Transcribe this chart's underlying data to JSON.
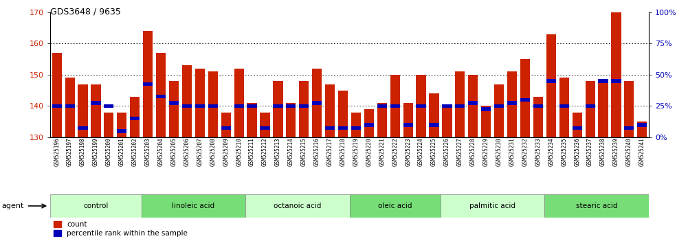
{
  "title": "GDS3648 / 9635",
  "categories": [
    "GSM525196",
    "GSM525197",
    "GSM525198",
    "GSM525199",
    "GSM525200",
    "GSM525201",
    "GSM525202",
    "GSM525203",
    "GSM525204",
    "GSM525205",
    "GSM525206",
    "GSM525207",
    "GSM525208",
    "GSM525209",
    "GSM525210",
    "GSM525211",
    "GSM525212",
    "GSM525213",
    "GSM525214",
    "GSM525215",
    "GSM525216",
    "GSM525217",
    "GSM525218",
    "GSM525219",
    "GSM525220",
    "GSM525221",
    "GSM525222",
    "GSM525223",
    "GSM525224",
    "GSM525225",
    "GSM525226",
    "GSM525227",
    "GSM525228",
    "GSM525229",
    "GSM525230",
    "GSM525231",
    "GSM525232",
    "GSM525233",
    "GSM525234",
    "GSM525235",
    "GSM525236",
    "GSM525237",
    "GSM525238",
    "GSM525239",
    "GSM525240",
    "GSM525241"
  ],
  "red_values": [
    157,
    149,
    147,
    147,
    138,
    138,
    143,
    164,
    157,
    148,
    153,
    152,
    151,
    138,
    152,
    141,
    138,
    148,
    141,
    148,
    152,
    147,
    145,
    138,
    139,
    141,
    150,
    141,
    150,
    144,
    140,
    151,
    150,
    140,
    147,
    151,
    155,
    143,
    163,
    149,
    138,
    148,
    148,
    170,
    148,
    135
  ],
  "blue_values": [
    140,
    140,
    133,
    141,
    140,
    132,
    136,
    147,
    143,
    141,
    140,
    140,
    140,
    133,
    140,
    140,
    133,
    140,
    140,
    140,
    141,
    133,
    133,
    133,
    134,
    140,
    140,
    134,
    140,
    134,
    140,
    140,
    141,
    139,
    140,
    141,
    142,
    140,
    148,
    140,
    133,
    140,
    148,
    148,
    133,
    134
  ],
  "groups": [
    {
      "label": "control",
      "start": 0,
      "end": 7,
      "light": true
    },
    {
      "label": "linoleic acid",
      "start": 7,
      "end": 15,
      "light": false
    },
    {
      "label": "octanoic acid",
      "start": 15,
      "end": 23,
      "light": true
    },
    {
      "label": "oleic acid",
      "start": 23,
      "end": 30,
      "light": false
    },
    {
      "label": "palmitic acid",
      "start": 30,
      "end": 38,
      "light": true
    },
    {
      "label": "stearic acid",
      "start": 38,
      "end": 46,
      "light": false
    }
  ],
  "ylim_left": [
    130,
    170
  ],
  "ylim_right": [
    0,
    100
  ],
  "yticks_left": [
    130,
    140,
    150,
    160,
    170
  ],
  "yticks_right": [
    0,
    25,
    50,
    75,
    100
  ],
  "red_color": "#cc2200",
  "blue_color": "#0000bb",
  "bar_width": 0.75,
  "light_group_color": "#ccffcc",
  "dark_group_color": "#77dd77",
  "agent_label": "agent"
}
